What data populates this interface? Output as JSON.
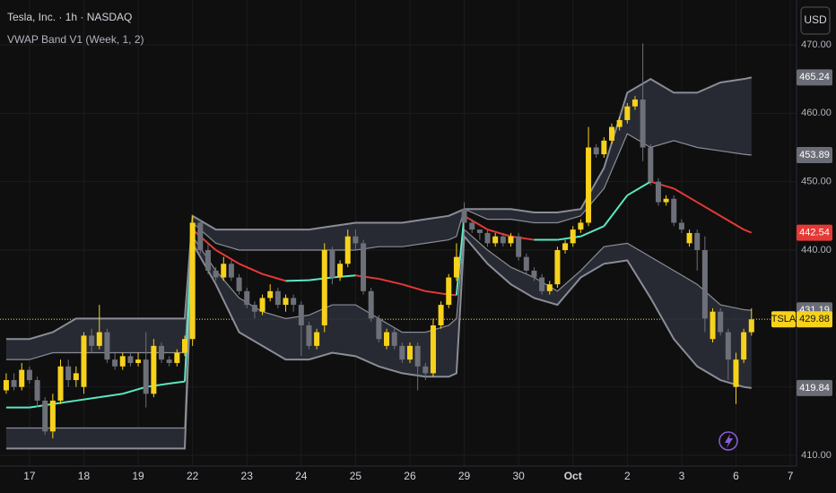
{
  "chart_data": {
    "type": "candlestick",
    "title": "Tesla, Inc. · 1h · NASDAQ",
    "subtitle": "VWAP Band V1 (Week, 1, 2)",
    "currency": "USD",
    "symbol": "TSLA",
    "grid": true,
    "xlim": [
      -3.8,
      98.8
    ],
    "ylim": [
      408.43,
      476.55
    ],
    "xticks": [
      {
        "value": 0,
        "label": "17"
      },
      {
        "value": 7,
        "label": "18"
      },
      {
        "value": 14,
        "label": "19"
      },
      {
        "value": 21,
        "label": "22"
      },
      {
        "value": 28,
        "label": "23"
      },
      {
        "value": 35,
        "label": "24"
      },
      {
        "value": 42,
        "label": "25"
      },
      {
        "value": 49,
        "label": "26"
      },
      {
        "value": 56,
        "label": "29"
      },
      {
        "value": 63,
        "label": "30"
      },
      {
        "value": 70,
        "label": "Oct"
      },
      {
        "value": 77,
        "label": "2"
      },
      {
        "value": 84,
        "label": "3"
      },
      {
        "value": 91,
        "label": "6"
      },
      {
        "value": 98,
        "label": "7"
      }
    ],
    "yticks": [
      {
        "value": 410,
        "label": "410.00"
      },
      {
        "value": 420,
        "label": "420.00"
      },
      {
        "value": 430,
        "label": "430.00"
      },
      {
        "value": 440,
        "label": "440.00"
      },
      {
        "value": 450,
        "label": "450.00"
      },
      {
        "value": 460,
        "label": "460.00"
      },
      {
        "value": 470,
        "label": "470.00"
      }
    ],
    "candles": {
      "up_color": "#f7d21c",
      "down_color": "#6e7079",
      "x": [
        -3,
        -2,
        -1,
        0,
        1,
        2,
        3,
        4,
        5,
        6,
        7,
        8,
        9,
        10,
        11,
        12,
        13,
        14,
        15,
        16,
        17,
        18,
        19,
        20,
        21,
        22,
        23,
        24,
        25,
        26,
        27,
        28,
        29,
        30,
        31,
        32,
        33,
        34,
        35,
        36,
        37,
        38,
        39,
        40,
        41,
        42,
        43,
        44,
        45,
        46,
        47,
        48,
        49,
        50,
        51,
        52,
        53,
        54,
        55,
        56,
        57,
        58,
        59,
        60,
        61,
        62,
        63,
        64,
        65,
        66,
        67,
        68,
        69,
        70,
        71,
        72,
        73,
        74,
        75,
        76,
        77,
        78,
        79,
        80,
        81,
        82,
        83,
        84,
        85,
        86,
        87,
        88,
        89,
        90,
        91,
        92,
        93
      ],
      "ohlc": [
        [
          419.5,
          422,
          419,
          421
        ],
        [
          421,
          422,
          419.5,
          420
        ],
        [
          420,
          423.5,
          419.5,
          422.5
        ],
        [
          422.5,
          423,
          420.5,
          421
        ],
        [
          421,
          421.5,
          417,
          418
        ],
        [
          418,
          418.5,
          413,
          413.5
        ],
        [
          413.5,
          419,
          412.5,
          418
        ],
        [
          418,
          424,
          417.5,
          423
        ],
        [
          423,
          424,
          420,
          421
        ],
        [
          421,
          423,
          420,
          422
        ],
        [
          420,
          428,
          419,
          427.5
        ],
        [
          427.5,
          428.5,
          425,
          426
        ],
        [
          426,
          432,
          425.5,
          428
        ],
        [
          428,
          428.5,
          423.5,
          424
        ],
        [
          424,
          425,
          422.5,
          423
        ],
        [
          423,
          425,
          422.5,
          424.5
        ],
        [
          424.5,
          425,
          423,
          423.5
        ],
        [
          423.5,
          425,
          423,
          424
        ],
        [
          424,
          428,
          417,
          419
        ],
        [
          419,
          427,
          418.5,
          426
        ],
        [
          426,
          426.5,
          423.5,
          424
        ],
        [
          424,
          424.5,
          423,
          423.5
        ],
        [
          423.5,
          425.5,
          423,
          425
        ],
        [
          425,
          427.5,
          424.5,
          427
        ],
        [
          427,
          445,
          426,
          444
        ],
        [
          444,
          444.5,
          439.5,
          440
        ],
        [
          440,
          441,
          436.5,
          437
        ],
        [
          437,
          437.5,
          435.5,
          436
        ],
        [
          436,
          439,
          435.5,
          438
        ],
        [
          438,
          438.5,
          435.5,
          436
        ],
        [
          436,
          436.5,
          433.5,
          434
        ],
        [
          434,
          434.5,
          431.5,
          432
        ],
        [
          432,
          432.5,
          430,
          431
        ],
        [
          431,
          433.5,
          430.5,
          433
        ],
        [
          433,
          435,
          432.5,
          434
        ],
        [
          434,
          434.5,
          431.5,
          432
        ],
        [
          432,
          433.5,
          431,
          433
        ],
        [
          433,
          433.5,
          431,
          432
        ],
        [
          432,
          432.5,
          424.5,
          429
        ],
        [
          429,
          429.5,
          425.5,
          426
        ],
        [
          426,
          428.5,
          425.5,
          428
        ],
        [
          429,
          441,
          428,
          440
        ],
        [
          440,
          440.5,
          435,
          436
        ],
        [
          436,
          438.5,
          435.5,
          438
        ],
        [
          438,
          443,
          437.5,
          442
        ],
        [
          442,
          443,
          440,
          441
        ],
        [
          441,
          441.5,
          433.5,
          434
        ],
        [
          434,
          434.5,
          429.5,
          430
        ],
        [
          430,
          430.5,
          426.5,
          427
        ],
        [
          426,
          428.5,
          425.5,
          428
        ],
        [
          428,
          428.5,
          425.5,
          426
        ],
        [
          426,
          426.5,
          423.5,
          424
        ],
        [
          424,
          426.5,
          423.5,
          426
        ],
        [
          426,
          426.5,
          419.5,
          423
        ],
        [
          423,
          423.5,
          421,
          422
        ],
        [
          422,
          430,
          421.5,
          429
        ],
        [
          429,
          432.5,
          428.5,
          432
        ],
        [
          432,
          436.5,
          431.5,
          436
        ],
        [
          436,
          441,
          435.5,
          439
        ],
        [
          446,
          447,
          443,
          444
        ],
        [
          444,
          444.5,
          442.5,
          443
        ],
        [
          443,
          443,
          441.5,
          442.5
        ],
        [
          442.5,
          443,
          440.5,
          441
        ],
        [
          441,
          442.5,
          440.5,
          442
        ],
        [
          442,
          442.5,
          440.5,
          441
        ],
        [
          441,
          442.5,
          440.5,
          442
        ],
        [
          442,
          442.5,
          438.5,
          439
        ],
        [
          439,
          439.5,
          436.5,
          437
        ],
        [
          437,
          437.5,
          435.5,
          436
        ],
        [
          436,
          436.5,
          433.5,
          434
        ],
        [
          434,
          435.5,
          433.5,
          435
        ],
        [
          435,
          440.5,
          434.5,
          440
        ],
        [
          440,
          441.5,
          439.5,
          441
        ],
        [
          441,
          443.5,
          440.5,
          443
        ],
        [
          443,
          444.5,
          442.5,
          444
        ],
        [
          444,
          458,
          443.5,
          455
        ],
        [
          455,
          455.5,
          453.5,
          454
        ],
        [
          454,
          456.5,
          453.5,
          456
        ],
        [
          456,
          458.5,
          455.5,
          458
        ],
        [
          458,
          459.5,
          457.5,
          459
        ],
        [
          459,
          461.5,
          458.5,
          461
        ],
        [
          461,
          462.5,
          460.5,
          462
        ],
        [
          462,
          470.2,
          453,
          455
        ],
        [
          455,
          455.5,
          449.5,
          450
        ],
        [
          450,
          450.5,
          446.5,
          447
        ],
        [
          447,
          448,
          446.5,
          447.5
        ],
        [
          447.5,
          448,
          443.5,
          444
        ],
        [
          444,
          444.5,
          442.5,
          443
        ],
        [
          441,
          443,
          440.5,
          442.5
        ],
        [
          442.5,
          443,
          437,
          440
        ],
        [
          440,
          442,
          428,
          430
        ],
        [
          427,
          431.5,
          426.5,
          431
        ],
        [
          431,
          431.5,
          427.5,
          428
        ],
        [
          428,
          428.5,
          421,
          424
        ],
        [
          420,
          425,
          417.5,
          424
        ],
        [
          424,
          428.5,
          423.5,
          428
        ],
        [
          428,
          431.5,
          427.5,
          429.88
        ]
      ]
    },
    "vwap_band": {
      "line_color": "#8a8d96",
      "fill_color": "#2a2d36",
      "vwap_up_color": "#5ce8c4",
      "vwap_down_color": "#e53935",
      "x": [
        -3,
        0,
        3,
        6,
        9,
        12,
        15,
        18,
        20,
        21,
        24,
        27,
        30,
        33,
        36,
        39,
        42,
        45,
        48,
        51,
        54,
        55,
        56,
        59,
        62,
        65,
        68,
        71,
        74,
        77,
        80,
        83,
        86,
        89,
        92,
        93
      ],
      "upper_outer": [
        427,
        427,
        428,
        430,
        430,
        430,
        430,
        430,
        430,
        445,
        443,
        443,
        443,
        443,
        443,
        443.5,
        444,
        444,
        444,
        444.5,
        445,
        445.5,
        446,
        446,
        446,
        445.5,
        445.5,
        446,
        452,
        463,
        465,
        463,
        463,
        464.5,
        465,
        465.24
      ],
      "upper_inner": [
        424,
        424,
        425,
        425,
        425,
        425,
        425,
        425,
        425,
        444,
        441,
        440,
        440,
        440,
        440,
        440,
        440,
        440.5,
        440.5,
        441,
        441.5,
        442,
        446,
        444.5,
        444.5,
        444,
        444,
        445,
        449,
        457,
        455,
        456,
        455,
        454.5,
        454,
        453.89
      ],
      "vwap": [
        417,
        417,
        417.5,
        418,
        418.5,
        419,
        420,
        420.5,
        420.8,
        443,
        440,
        438,
        436.5,
        435.5,
        435.6,
        436,
        436.3,
        435.8,
        435,
        434,
        433.5,
        433.4,
        445,
        443,
        442,
        441.5,
        441.5,
        442,
        443.5,
        448,
        450,
        449,
        447,
        445,
        443,
        442.54
      ],
      "lower_inner": [
        414,
        414,
        414,
        414,
        414,
        414,
        414,
        414,
        414,
        442,
        437,
        433,
        431,
        430,
        430.5,
        432,
        432,
        430,
        428,
        428,
        429,
        430,
        443,
        440,
        437.5,
        436,
        434,
        437,
        440.5,
        441,
        439,
        437,
        435,
        432,
        431.3,
        431.19
      ],
      "lower_outer": [
        411,
        411,
        411,
        411,
        411,
        411,
        411,
        411,
        411,
        441,
        435,
        428,
        426,
        424,
        424,
        425,
        424.5,
        423,
        422,
        421.5,
        421.5,
        422,
        442,
        438,
        435,
        433,
        432,
        436,
        438,
        438.5,
        433,
        427,
        423,
        421,
        420,
        419.84
      ]
    }
  }
}
